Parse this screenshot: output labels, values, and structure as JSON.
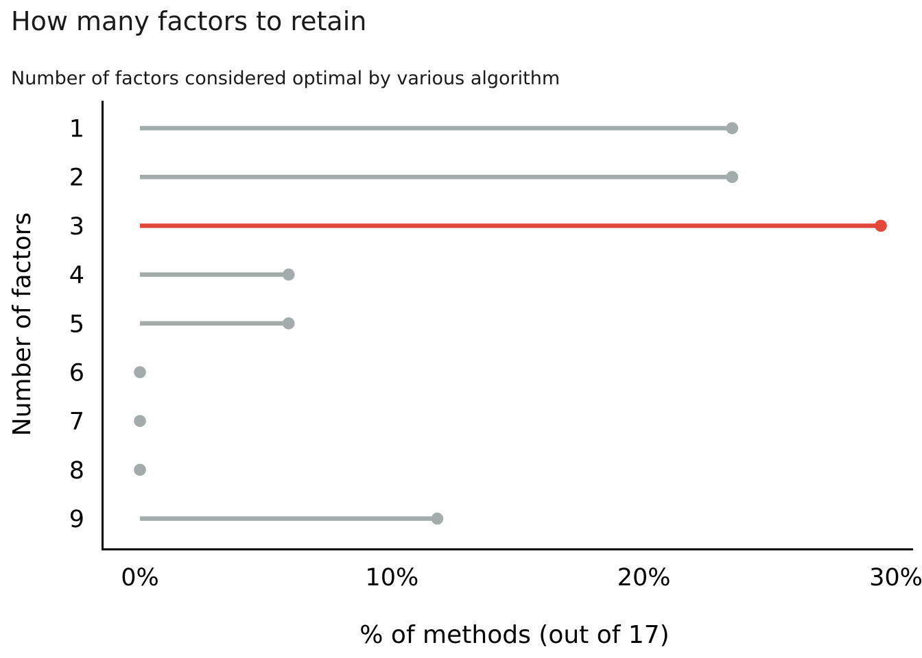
{
  "chart_data": {
    "type": "bar",
    "variant": "horizontal-lollipop",
    "title": "How many factors to retain",
    "subtitle": "Number of factors considered optimal by various algorithm",
    "categories": [
      "1",
      "2",
      "3",
      "4",
      "5",
      "6",
      "7",
      "8",
      "9"
    ],
    "values": [
      23.5,
      23.5,
      29.4,
      5.9,
      5.9,
      0,
      0,
      0,
      11.8
    ],
    "highlight_category": "3",
    "highlight_index": 2,
    "xlabel": "% of methods (out of 17)",
    "ylabel": "Number of factors",
    "xlim": [
      0,
      30
    ],
    "xticks": [
      0,
      10,
      20,
      30
    ],
    "xtick_labels": [
      "0%",
      "10%",
      "20%",
      "30%"
    ],
    "grid": "off",
    "legend": "none",
    "colors": {
      "stem": "#a3acab",
      "highlight": "#e2483a",
      "axis": "#000000",
      "text": "#1a1a1a"
    }
  }
}
